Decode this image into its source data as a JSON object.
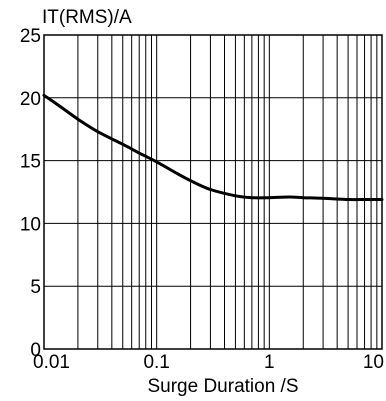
{
  "chart_data": {
    "type": "line",
    "title": "",
    "xlabel": "Surge Duration /S",
    "ylabel": "IT(RMS)/A",
    "x_scale": "log",
    "xlim": [
      0.01,
      10
    ],
    "ylim": [
      0,
      25
    ],
    "grid": true,
    "x_ticks": [
      "0.01",
      "0.1",
      "1",
      "10"
    ],
    "y_ticks": [
      "0",
      "5",
      "10",
      "15",
      "20",
      "25"
    ],
    "series": [
      {
        "x": [
          0.01,
          0.015,
          0.02,
          0.03,
          0.05,
          0.07,
          0.1,
          0.15,
          0.2,
          0.3,
          0.5,
          0.7,
          1,
          1.5,
          2,
          3,
          5,
          7,
          10
        ],
        "y": [
          20.2,
          19.1,
          18.3,
          17.3,
          16.3,
          15.6,
          14.9,
          14.0,
          13.4,
          12.7,
          12.2,
          12.05,
          12.05,
          12.1,
          12.05,
          12.0,
          11.9,
          11.9,
          11.9
        ]
      }
    ],
    "colors": {
      "line": "#000000",
      "grid": "#000000",
      "background": "#ffffff"
    }
  }
}
